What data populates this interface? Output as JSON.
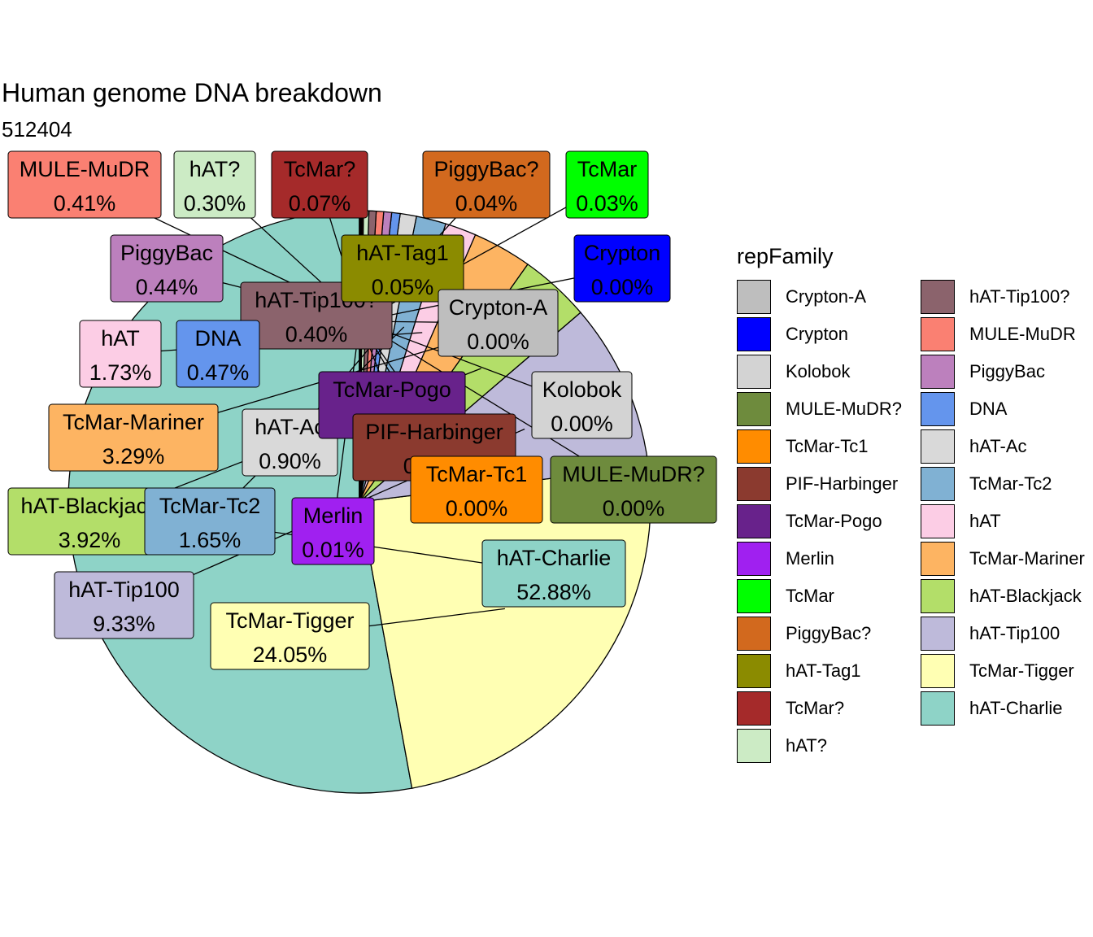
{
  "title": "Human genome DNA breakdown",
  "subtitle": "512404",
  "chart_data": {
    "type": "pie",
    "legend_title": "repFamily",
    "legend_position": "right",
    "slices": [
      {
        "name": "hAT-Charlie",
        "value": 52.88,
        "label": "52.88%",
        "color": "#8ED3C7"
      },
      {
        "name": "TcMar-Tigger",
        "value": 24.05,
        "label": "24.05%",
        "color": "#FFFFB3"
      },
      {
        "name": "hAT-Tip100",
        "value": 9.33,
        "label": "9.33%",
        "color": "#BEBADA"
      },
      {
        "name": "hAT-Blackjack",
        "value": 3.92,
        "label": "3.92%",
        "color": "#B3DE69"
      },
      {
        "name": "TcMar-Mariner",
        "value": 3.29,
        "label": "3.29%",
        "color": "#FDB462"
      },
      {
        "name": "hAT",
        "value": 1.73,
        "label": "1.73%",
        "color": "#FCCDE5"
      },
      {
        "name": "TcMar-Tc2",
        "value": 1.65,
        "label": "1.65%",
        "color": "#80B1D3"
      },
      {
        "name": "hAT-Ac",
        "value": 0.9,
        "label": "0.90%",
        "color": "#D9D9D9"
      },
      {
        "name": "DNA",
        "value": 0.47,
        "label": "0.47%",
        "color": "#6495ED"
      },
      {
        "name": "PiggyBac",
        "value": 0.44,
        "label": "0.44%",
        "color": "#BC80BD"
      },
      {
        "name": "MULE-MuDR",
        "value": 0.41,
        "label": "0.41%",
        "color": "#FA8072"
      },
      {
        "name": "hAT-Tip100?",
        "value": 0.4,
        "label": "0.40%",
        "color": "#8B636C"
      },
      {
        "name": "hAT?",
        "value": 0.3,
        "label": "0.30%",
        "color": "#CCEBC5"
      },
      {
        "name": "TcMar?",
        "value": 0.07,
        "label": "0.07%",
        "color": "#A52A2A"
      },
      {
        "name": "hAT-Tag1",
        "value": 0.05,
        "label": "0.05%",
        "color": "#8B8B00"
      },
      {
        "name": "PiggyBac?",
        "value": 0.04,
        "label": "0.04%",
        "color": "#D2691E"
      },
      {
        "name": "TcMar",
        "value": 0.03,
        "label": "0.03%",
        "color": "#00FF00"
      },
      {
        "name": "Merlin",
        "value": 0.01,
        "label": "0.01%",
        "color": "#A020F0"
      },
      {
        "name": "PIF-Harbinger",
        "value": 0.004,
        "label": "0.00%",
        "color": "#8B3A2F"
      },
      {
        "name": "TcMar-Pogo",
        "value": 0.004,
        "label": "0.00%",
        "color": "#68228B"
      },
      {
        "name": "TcMar-Tc1",
        "value": 0.004,
        "label": "0.00%",
        "color": "#FF8C00"
      },
      {
        "name": "MULE-MuDR?",
        "value": 0.002,
        "label": "0.00%",
        "color": "#6E8B3D"
      },
      {
        "name": "Kolobok",
        "value": 0.002,
        "label": "0.00%",
        "color": "#D3D3D3"
      },
      {
        "name": "Crypton",
        "value": 0.001,
        "label": "0.00%",
        "color": "#0000FF"
      },
      {
        "name": "Crypton-A",
        "value": 0.001,
        "label": "0.00%",
        "color": "#BEBEBE"
      }
    ],
    "legend": [
      "Crypton-A",
      "Crypton",
      "Kolobok",
      "MULE-MuDR?",
      "TcMar-Tc1",
      "PIF-Harbinger",
      "TcMar-Pogo",
      "Merlin",
      "TcMar",
      "PiggyBac?",
      "hAT-Tag1",
      "TcMar?",
      "hAT?",
      "hAT-Tip100?",
      "MULE-MuDR",
      "PiggyBac",
      "DNA",
      "hAT-Ac",
      "TcMar-Tc2",
      "hAT",
      "TcMar-Mariner",
      "hAT-Blackjack",
      "hAT-Tip100",
      "TcMar-Tigger",
      "hAT-Charlie"
    ]
  }
}
